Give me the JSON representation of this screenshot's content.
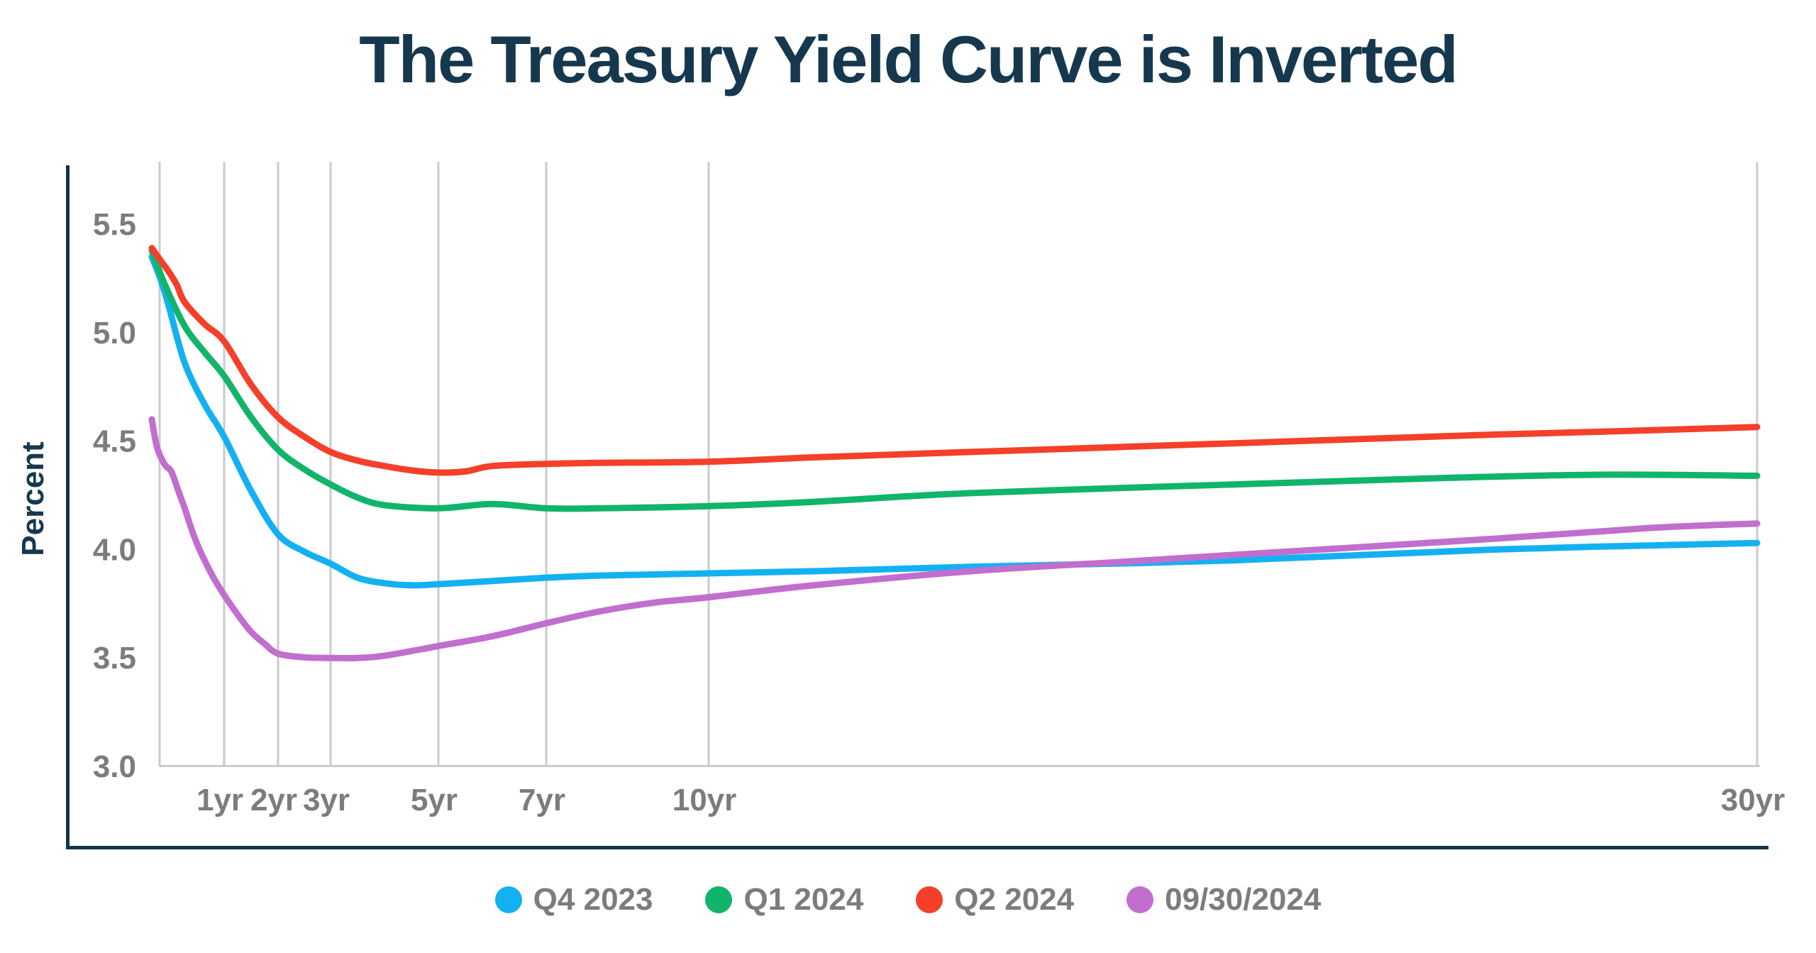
{
  "title": "The Treasury Yield Curve is Inverted",
  "y_axis_label": "Percent",
  "colors": {
    "title_navy": "#16384E",
    "axis_navy": "#12334A",
    "label_gray": "#7C7C7C",
    "gridline_gray": "#CBCBCB",
    "background": "#FFFFFF"
  },
  "chart_data": {
    "type": "line",
    "title": "The Treasury Yield Curve is Inverted",
    "xlabel": "",
    "ylabel": "Percent",
    "x_unit": "years to maturity",
    "ylim": [
      3.0,
      5.5
    ],
    "grid": "vertical-only-plus-baseline",
    "legend_position": "bottom",
    "y_ticks": [
      {
        "label": "5.5",
        "v": 5.5
      },
      {
        "label": "5.0",
        "v": 5.0
      },
      {
        "label": "4.5",
        "v": 4.5
      },
      {
        "label": "4.0",
        "v": 4.0
      },
      {
        "label": "3.5",
        "v": 3.5
      },
      {
        "label": "3.0",
        "v": 3.0
      }
    ],
    "x_ticks": [
      {
        "label": "1yr",
        "m": 1
      },
      {
        "label": "2yr",
        "m": 2
      },
      {
        "label": "3yr",
        "m": 3
      },
      {
        "label": "5yr",
        "m": 5
      },
      {
        "label": "7yr",
        "m": 7
      },
      {
        "label": "10yr",
        "m": 10
      },
      {
        "label": "30yr",
        "m": 30
      }
    ],
    "series": [
      {
        "name": "Q4 2023",
        "color": "#14B1F2",
        "points": [
          [
            0.083,
            5.35
          ],
          [
            0.2,
            5.24
          ],
          [
            0.3,
            5.12
          ],
          [
            0.5,
            4.86
          ],
          [
            0.75,
            4.67
          ],
          [
            1,
            4.52
          ],
          [
            1.5,
            4.27
          ],
          [
            2,
            4.07
          ],
          [
            2.5,
            3.99
          ],
          [
            3,
            3.935
          ],
          [
            3.5,
            3.87
          ],
          [
            4,
            3.845
          ],
          [
            4.5,
            3.835
          ],
          [
            5,
            3.84
          ],
          [
            6,
            3.855
          ],
          [
            7,
            3.87
          ],
          [
            8,
            3.88
          ],
          [
            10,
            3.89
          ],
          [
            12,
            3.9
          ],
          [
            15,
            3.92
          ],
          [
            20,
            3.95
          ],
          [
            25,
            4.0
          ],
          [
            30,
            4.03
          ]
        ]
      },
      {
        "name": "Q1 2024",
        "color": "#10B56B",
        "points": [
          [
            0.083,
            5.38
          ],
          [
            0.25,
            5.22
          ],
          [
            0.5,
            5.03
          ],
          [
            0.75,
            4.91
          ],
          [
            1,
            4.8
          ],
          [
            1.5,
            4.61
          ],
          [
            2,
            4.46
          ],
          [
            2.5,
            4.37
          ],
          [
            3,
            4.3
          ],
          [
            3.5,
            4.24
          ],
          [
            4,
            4.205
          ],
          [
            5,
            4.19
          ],
          [
            6,
            4.21
          ],
          [
            7,
            4.19
          ],
          [
            8,
            4.19
          ],
          [
            10,
            4.2
          ],
          [
            12,
            4.22
          ],
          [
            15,
            4.26
          ],
          [
            20,
            4.3
          ],
          [
            24,
            4.33
          ],
          [
            27,
            4.345
          ],
          [
            30,
            4.34
          ]
        ]
      },
      {
        "name": "Q2 2024",
        "color": "#F4402A",
        "points": [
          [
            0.083,
            5.39
          ],
          [
            0.2,
            5.33
          ],
          [
            0.3,
            5.28
          ],
          [
            0.4,
            5.22
          ],
          [
            0.5,
            5.14
          ],
          [
            0.75,
            5.04
          ],
          [
            1,
            4.96
          ],
          [
            1.5,
            4.76
          ],
          [
            2,
            4.61
          ],
          [
            2.5,
            4.52
          ],
          [
            3,
            4.45
          ],
          [
            3.5,
            4.41
          ],
          [
            4,
            4.385
          ],
          [
            4.5,
            4.365
          ],
          [
            5,
            4.355
          ],
          [
            5.5,
            4.36
          ],
          [
            6,
            4.385
          ],
          [
            7,
            4.395
          ],
          [
            8,
            4.4
          ],
          [
            10,
            4.405
          ],
          [
            12,
            4.425
          ],
          [
            15,
            4.45
          ],
          [
            20,
            4.49
          ],
          [
            25,
            4.53
          ],
          [
            28,
            4.55
          ],
          [
            30,
            4.565
          ]
        ]
      },
      {
        "name": "09/30/2024",
        "color": "#C16ECF",
        "points": [
          [
            0.083,
            4.6
          ],
          [
            0.15,
            4.47
          ],
          [
            0.25,
            4.39
          ],
          [
            0.33,
            4.36
          ],
          [
            0.42,
            4.27
          ],
          [
            0.5,
            4.19
          ],
          [
            0.6,
            4.08
          ],
          [
            0.7,
            3.99
          ],
          [
            0.85,
            3.88
          ],
          [
            1,
            3.79
          ],
          [
            1.25,
            3.7
          ],
          [
            1.5,
            3.62
          ],
          [
            1.75,
            3.565
          ],
          [
            2,
            3.52
          ],
          [
            2.5,
            3.503
          ],
          [
            3,
            3.5
          ],
          [
            3.5,
            3.5
          ],
          [
            4,
            3.51
          ],
          [
            5,
            3.555
          ],
          [
            6,
            3.6
          ],
          [
            7,
            3.66
          ],
          [
            8,
            3.715
          ],
          [
            9,
            3.755
          ],
          [
            10,
            3.78
          ],
          [
            12,
            3.835
          ],
          [
            15,
            3.9
          ],
          [
            18,
            3.945
          ],
          [
            20,
            3.975
          ],
          [
            25,
            4.05
          ],
          [
            28,
            4.1
          ],
          [
            30,
            4.12
          ]
        ]
      }
    ]
  }
}
